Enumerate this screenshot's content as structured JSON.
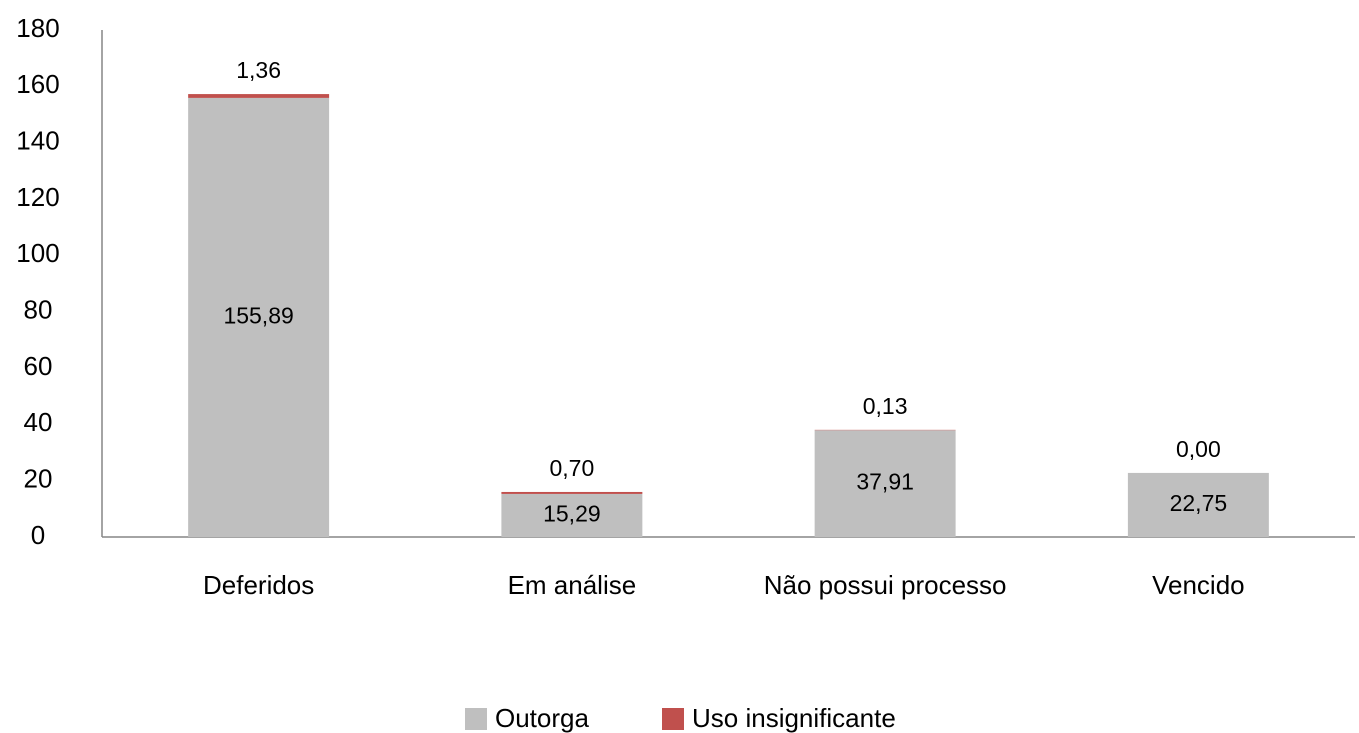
{
  "chart_data": {
    "type": "stacked_bar",
    "categories": [
      "Deferidos",
      "Em análise",
      "Não possui processo",
      "Vencido"
    ],
    "series": [
      {
        "name": "Outorga",
        "color": "#bfbfbf",
        "values": [
          155.89,
          15.29,
          37.91,
          22.75
        ],
        "value_labels": [
          "155,89",
          "15,29",
          "37,91",
          "22,75"
        ]
      },
      {
        "name": "Uso insignificante",
        "color": "#c0504d",
        "values": [
          1.36,
          0.7,
          0.13,
          0.0
        ],
        "value_labels": [
          "1,36",
          "0,70",
          "0,13",
          "0,00"
        ]
      }
    ],
    "ylim": [
      0,
      180
    ],
    "yticks": [
      0,
      20,
      40,
      60,
      80,
      100,
      120,
      140,
      160,
      180
    ],
    "grid": false,
    "legend": "bottom"
  }
}
